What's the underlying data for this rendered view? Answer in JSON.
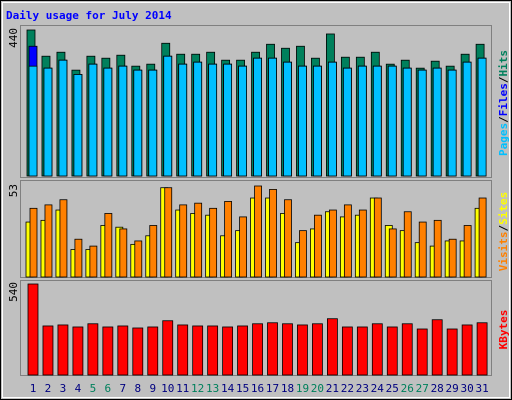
{
  "chart_data": [
    {
      "type": "bar",
      "title": "Daily usage for July 2014",
      "legend_separator": "/",
      "ylim": [
        0,
        440
      ],
      "yticks": [
        440
      ],
      "series": [
        {
          "name": "Hits",
          "color": "#00805c",
          "values": [
            440,
            361,
            373,
            319,
            361,
            355,
            364,
            331,
            337,
            400,
            367,
            367,
            373,
            349,
            349,
            373,
            397,
            385,
            391,
            355,
            428,
            358,
            358,
            373,
            337,
            349,
            325,
            346,
            331,
            367,
            397
          ]
        },
        {
          "name": "Files",
          "color": "#0000ff",
          "values": [
            391,
            325,
            349,
            306,
            337,
            325,
            331,
            319,
            319,
            361,
            337,
            343,
            337,
            337,
            331,
            355,
            355,
            343,
            331,
            331,
            343,
            325,
            331,
            331,
            331,
            325,
            319,
            325,
            319,
            343,
            355
          ]
        },
        {
          "name": "Pages",
          "color": "#00c0ff",
          "values": [
            331,
            325,
            349,
            306,
            337,
            325,
            331,
            319,
            319,
            361,
            337,
            343,
            337,
            337,
            331,
            355,
            355,
            343,
            331,
            331,
            343,
            325,
            331,
            331,
            331,
            325,
            319,
            325,
            319,
            343,
            355
          ]
        }
      ]
    },
    {
      "type": "bar",
      "ylim": [
        0,
        53
      ],
      "yticks": [
        53
      ],
      "series": [
        {
          "name": "Sites",
          "color": "#ffff00",
          "values": [
            32,
            33,
            39,
            16,
            16,
            30,
            29,
            19,
            24,
            52,
            39,
            37,
            36,
            24,
            27,
            46,
            46,
            37,
            20,
            28,
            38,
            35,
            36,
            46,
            30,
            27,
            20,
            18,
            21,
            21,
            40
          ]
        },
        {
          "name": "Visits",
          "color": "#ff8000",
          "values": [
            40,
            42,
            45,
            22,
            18,
            37,
            28,
            21,
            30,
            52,
            42,
            43,
            40,
            44,
            35,
            53,
            51,
            45,
            27,
            36,
            39,
            42,
            39,
            46,
            28,
            38,
            32,
            33,
            22,
            30,
            46
          ]
        }
      ]
    },
    {
      "type": "bar",
      "ylim": [
        0,
        540
      ],
      "yticks": [
        540
      ],
      "categories": [
        "1",
        "2",
        "3",
        "4",
        "5",
        "6",
        "7",
        "8",
        "9",
        "10",
        "11",
        "12",
        "13",
        "14",
        "15",
        "16",
        "17",
        "18",
        "19",
        "20",
        "21",
        "22",
        "23",
        "24",
        "25",
        "26",
        "27",
        "28",
        "29",
        "30",
        "31"
      ],
      "category_colors": [
        "#000080",
        "#000080",
        "#000080",
        "#000080",
        "#00805c",
        "#00805c",
        "#000080",
        "#000080",
        "#000080",
        "#000080",
        "#000080",
        "#00805c",
        "#00805c",
        "#000080",
        "#000080",
        "#000080",
        "#000080",
        "#000080",
        "#00805c",
        "#00805c",
        "#000080",
        "#000080",
        "#000080",
        "#000080",
        "#000080",
        "#00805c",
        "#00805c",
        "#000080",
        "#000080",
        "#000080",
        "#000080"
      ],
      "series": [
        {
          "name": "KBytes",
          "color": "#ff0000",
          "values": [
            540,
            291,
            297,
            285,
            304,
            285,
            291,
            279,
            285,
            322,
            297,
            291,
            291,
            285,
            291,
            304,
            310,
            304,
            297,
            304,
            334,
            285,
            285,
            304,
            285,
            304,
            273,
            328,
            273,
            297,
            310
          ]
        }
      ]
    }
  ]
}
